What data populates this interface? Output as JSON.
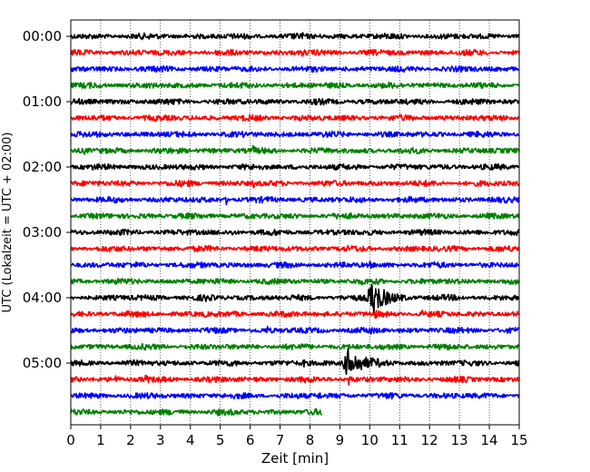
{
  "chart_data": {
    "type": "line",
    "xlabel": "Zeit  [min]",
    "ylabel": "UTC (Lokalzeit = UTC + 02:00)",
    "xlim": [
      0,
      15
    ],
    "x_ticks": [
      0,
      1,
      2,
      3,
      4,
      5,
      6,
      7,
      8,
      9,
      10,
      11,
      12,
      13,
      14,
      15
    ],
    "y_tick_labels": [
      "00:00",
      "01:00",
      "02:00",
      "03:00",
      "04:00",
      "05:00"
    ],
    "grid": "vertical dotted",
    "trace_colors": [
      "#000000",
      "#ff0000",
      "#0000ff",
      "#008000"
    ],
    "traces": [
      {
        "start": "00:00",
        "end_min": 15,
        "events": [
          {
            "t": 7.7,
            "amp": 0.5
          }
        ]
      },
      {
        "start": "00:15",
        "end_min": 15,
        "events": [
          {
            "t": 7.75,
            "amp": 0.5
          }
        ]
      },
      {
        "start": "00:30",
        "end_min": 15,
        "events": []
      },
      {
        "start": "00:45",
        "end_min": 15,
        "events": []
      },
      {
        "start": "01:00",
        "end_min": 15,
        "events": []
      },
      {
        "start": "01:15",
        "end_min": 15,
        "events": []
      },
      {
        "start": "01:30",
        "end_min": 15,
        "events": []
      },
      {
        "start": "01:45",
        "end_min": 15,
        "events": [
          {
            "t": 0.45,
            "amp": 0.4
          },
          {
            "t": 6.1,
            "amp": 0.5
          }
        ]
      },
      {
        "start": "02:00",
        "end_min": 15,
        "events": []
      },
      {
        "start": "02:15",
        "end_min": 15,
        "events": [
          {
            "t": 6.1,
            "amp": 0.6
          },
          {
            "t": 3.9,
            "amp": 0.35
          }
        ]
      },
      {
        "start": "02:30",
        "end_min": 15,
        "events": [
          {
            "t": 5.2,
            "amp": 0.6
          },
          {
            "t": 10.7,
            "amp": 0.5
          }
        ]
      },
      {
        "start": "02:45",
        "end_min": 15,
        "events": [
          {
            "t": 1.5,
            "amp": 0.5
          }
        ]
      },
      {
        "start": "03:00",
        "end_min": 15,
        "events": [
          {
            "t": 9.25,
            "amp": 0.8
          },
          {
            "t": 5.4,
            "amp": 0.3
          }
        ]
      },
      {
        "start": "03:15",
        "end_min": 15,
        "events": [
          {
            "t": 12.35,
            "amp": 0.5
          }
        ]
      },
      {
        "start": "03:30",
        "end_min": 15,
        "events": [
          {
            "t": 4.4,
            "amp": 0.3
          },
          {
            "t": 10.0,
            "amp": 0.4
          }
        ]
      },
      {
        "start": "03:45",
        "end_min": 15,
        "events": [
          {
            "t": 10.3,
            "amp": 0.5
          }
        ]
      },
      {
        "start": "04:00",
        "end_min": 15,
        "events": [
          {
            "t": 10.1,
            "amp": 3.2,
            "dur": 0.9
          },
          {
            "t": 4.5,
            "amp": 0.4
          }
        ]
      },
      {
        "start": "04:15",
        "end_min": 15,
        "events": [
          {
            "t": 4.45,
            "amp": 0.5
          },
          {
            "t": 10.15,
            "amp": 0.6
          },
          {
            "t": 11.75,
            "amp": 0.4
          }
        ]
      },
      {
        "start": "04:30",
        "end_min": 15,
        "events": [
          {
            "t": 6.55,
            "amp": 0.7
          },
          {
            "t": 10.0,
            "amp": 0.4
          }
        ]
      },
      {
        "start": "04:45",
        "end_min": 15,
        "events": [
          {
            "t": 12.45,
            "amp": 0.8
          }
        ]
      },
      {
        "start": "05:00",
        "end_min": 15,
        "events": [
          {
            "t": 9.3,
            "amp": 2.6,
            "dur": 1.0
          },
          {
            "t": 7.8,
            "amp": 0.5
          },
          {
            "t": 2.6,
            "amp": 0.3
          }
        ]
      },
      {
        "start": "05:15",
        "end_min": 15,
        "events": [
          {
            "t": 2.5,
            "amp": 0.6
          },
          {
            "t": 1.5,
            "amp": 0.5
          },
          {
            "t": 9.3,
            "amp": 0.9
          }
        ]
      },
      {
        "start": "05:30",
        "end_min": 15,
        "events": [
          {
            "t": 8.3,
            "amp": 0.6
          }
        ]
      },
      {
        "start": "05:45",
        "end_min": 8.4,
        "events": [
          {
            "t": 4.9,
            "amp": 0.3
          }
        ]
      }
    ]
  }
}
